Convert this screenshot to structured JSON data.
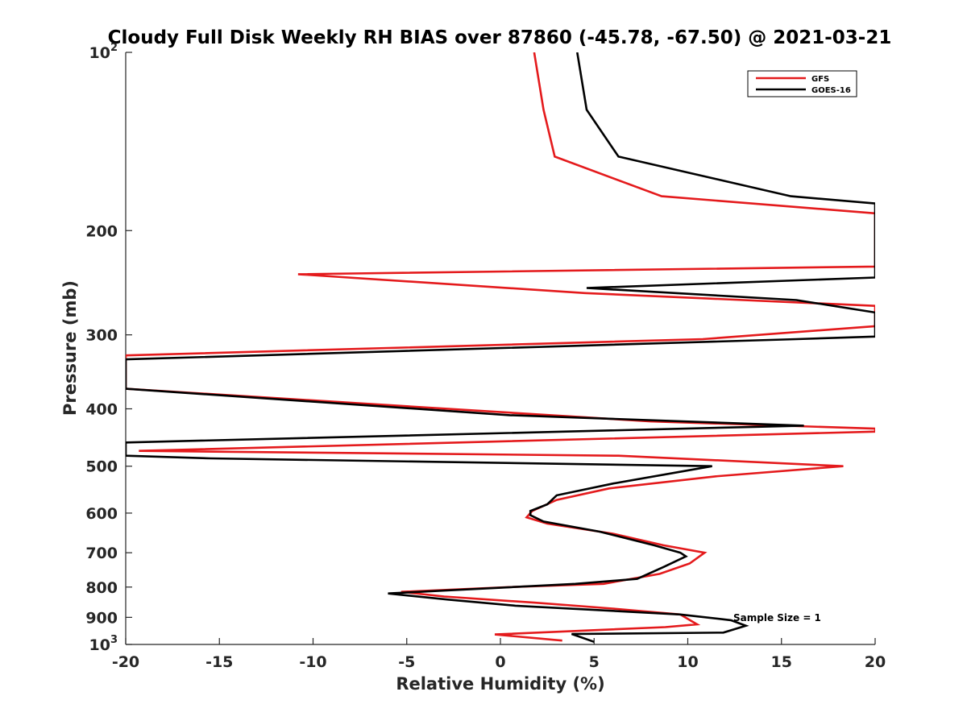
{
  "chart_data": {
    "type": "line",
    "title": "Cloudy Full Disk Weekly RH BIAS over 87860 (-45.78, -67.50) @ 2021-03-21",
    "xlabel": "Relative Humidity (%)",
    "ylabel": "Pressure (mb)",
    "xlim": [
      -20,
      20
    ],
    "ylim": [
      100,
      1000
    ],
    "y_scale": "log",
    "y_reversed": true,
    "grid": false,
    "x_ticks": [
      "-20",
      "-15",
      "-10",
      "-5",
      "0",
      "5",
      "10",
      "15",
      "20"
    ],
    "y_ticks": [
      {
        "value": 100,
        "base": "10",
        "exp": "2"
      },
      {
        "value": 200,
        "label": "200"
      },
      {
        "value": 300,
        "label": "300"
      },
      {
        "value": 400,
        "label": "400"
      },
      {
        "value": 500,
        "label": "500"
      },
      {
        "value": 600,
        "label": "600"
      },
      {
        "value": 700,
        "label": "700"
      },
      {
        "value": 800,
        "label": "800"
      },
      {
        "value": 900,
        "label": "900"
      },
      {
        "value": 1000,
        "base": "10",
        "exp": "3"
      }
    ],
    "legend_position": "top-right",
    "annotation": "Sample Size = 1",
    "series": [
      {
        "name": "GFS",
        "color": "#e41a1c",
        "points": [
          [
            1.8,
            100
          ],
          [
            2.3,
            125
          ],
          [
            2.9,
            150
          ],
          [
            8.6,
            175
          ],
          [
            20.0,
            187
          ],
          [
            20.0,
            230
          ],
          [
            -10.8,
            237
          ],
          [
            4.5,
            255
          ],
          [
            20.0,
            268
          ],
          [
            20.0,
            290
          ],
          [
            10.8,
            305
          ],
          [
            -20.0,
            325
          ],
          [
            -20.0,
            370
          ],
          [
            8.0,
            420
          ],
          [
            20.0,
            432
          ],
          [
            20.0,
            437
          ],
          [
            -19.3,
            471
          ],
          [
            6.3,
            480
          ],
          [
            18.3,
            500
          ],
          [
            11.5,
            520
          ],
          [
            5.8,
            545
          ],
          [
            3.0,
            570
          ],
          [
            1.7,
            595
          ],
          [
            1.4,
            610
          ],
          [
            2.5,
            625
          ],
          [
            6.0,
            650
          ],
          [
            8.7,
            680
          ],
          [
            10.9,
            700
          ],
          [
            10.1,
            730
          ],
          [
            8.5,
            760
          ],
          [
            5.5,
            790
          ],
          [
            0.5,
            800
          ],
          [
            -5.3,
            815
          ],
          [
            -3.0,
            830
          ],
          [
            1.8,
            850
          ],
          [
            6.0,
            870
          ],
          [
            9.6,
            890
          ],
          [
            10.5,
            925
          ],
          [
            8.8,
            935
          ],
          [
            -0.3,
            962
          ],
          [
            3.3,
            985
          ]
        ]
      },
      {
        "name": "GOES-16",
        "color": "#000000",
        "points": [
          [
            4.1,
            100
          ],
          [
            4.6,
            125
          ],
          [
            6.3,
            150
          ],
          [
            15.5,
            175
          ],
          [
            20.0,
            180
          ],
          [
            20.0,
            240
          ],
          [
            4.6,
            250
          ],
          [
            15.8,
            262
          ],
          [
            20.0,
            275
          ],
          [
            20.0,
            302
          ],
          [
            15.8,
            305
          ],
          [
            -20.0,
            330
          ],
          [
            -20.0,
            370
          ],
          [
            0.5,
            410
          ],
          [
            16.2,
            427
          ],
          [
            -20.0,
            456
          ],
          [
            -20.0,
            480
          ],
          [
            -15.5,
            485
          ],
          [
            11.3,
            500
          ],
          [
            6.0,
            535
          ],
          [
            3.0,
            560
          ],
          [
            2.5,
            580
          ],
          [
            1.6,
            595
          ],
          [
            1.6,
            605
          ],
          [
            2.3,
            620
          ],
          [
            5.3,
            645
          ],
          [
            8.2,
            680
          ],
          [
            9.6,
            700
          ],
          [
            9.9,
            710
          ],
          [
            8.7,
            740
          ],
          [
            7.3,
            775
          ],
          [
            4.0,
            790
          ],
          [
            -6.0,
            820
          ],
          [
            -2.8,
            840
          ],
          [
            0.8,
            860
          ],
          [
            9.6,
            890
          ],
          [
            12.3,
            910
          ],
          [
            13.1,
            930
          ],
          [
            11.9,
            955
          ],
          [
            3.8,
            960
          ],
          [
            5.0,
            990
          ]
        ]
      }
    ]
  }
}
